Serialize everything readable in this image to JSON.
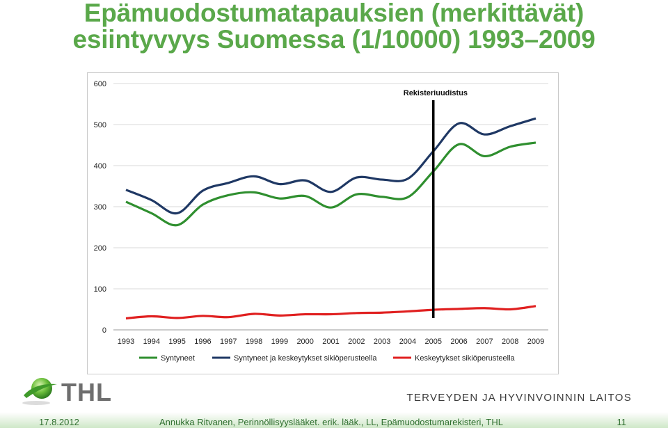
{
  "title": {
    "line1": "Epämuodostumatapauksien (merkittävät)",
    "line2": "esiintyvyys Suomessa (1/10000) 1993–2009"
  },
  "chart_data": {
    "type": "line",
    "x": [
      1993,
      1994,
      1995,
      1996,
      1997,
      1998,
      1999,
      2000,
      2001,
      2002,
      2003,
      2004,
      2005,
      2006,
      2007,
      2008,
      2009
    ],
    "ylim": [
      0,
      600
    ],
    "yticks": [
      0,
      100,
      200,
      300,
      400,
      500,
      600
    ],
    "xticks": [
      "1993",
      "1994",
      "1995",
      "1996",
      "1997",
      "1998",
      "1999",
      "2000",
      "2001",
      "2002",
      "2003",
      "2004",
      "2005",
      "2006",
      "2007",
      "2008",
      "2009"
    ],
    "grid": "horizontal",
    "legend_position": "bottom",
    "series": [
      {
        "name": "Syntyneet",
        "color": "#2f8f2f",
        "values": [
          312,
          284,
          255,
          305,
          328,
          335,
          320,
          326,
          298,
          330,
          324,
          323,
          386,
          452,
          423,
          446,
          456
        ]
      },
      {
        "name": "Syntyneet ja keskeytykset sikiöperusteella",
        "color": "#1f3864",
        "values": [
          341,
          316,
          284,
          339,
          358,
          374,
          355,
          364,
          336,
          371,
          366,
          368,
          435,
          503,
          476,
          496,
          515
        ]
      },
      {
        "name": "Keskeytykset sikiöperusteella",
        "color": "#e02020",
        "values": [
          28,
          33,
          29,
          34,
          31,
          39,
          35,
          38,
          38,
          41,
          42,
          45,
          49,
          51,
          53,
          50,
          58
        ]
      }
    ],
    "annotation": {
      "label": "Rekisteriuudistus",
      "x": 2005
    }
  },
  "logo": {
    "text": "THL"
  },
  "organization": "TERVEYDEN JA HYVINVOINNIN LAITOS",
  "footer": {
    "date": "17.8.2012",
    "author": "Annukka Ritvanen, Perinnöllisyyslääket. erik. lääk., LL, Epämuodostumarekisteri, THL",
    "page": "11"
  },
  "colors": {
    "title": "#5aa84a",
    "footer_text": "#2f6f2f",
    "logo_green": "#5aa84a"
  }
}
